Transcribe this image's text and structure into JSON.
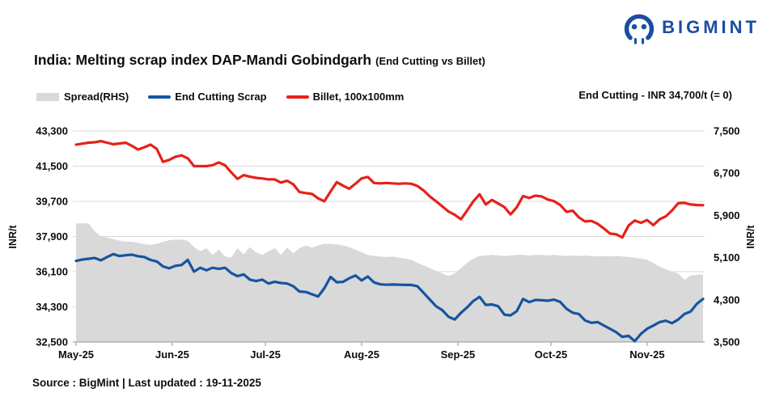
{
  "header": {
    "logo_text": "BIGMINT",
    "title_main": "India: Melting scrap index DAP-Mandi Gobindgarh",
    "title_sub": "(End Cutting vs Billet)"
  },
  "annotation": "End Cutting - INR 34,700/t (= 0)",
  "legend": {
    "items": [
      {
        "label": "Spread(RHS)"
      },
      {
        "label": "End Cutting Scrap"
      },
      {
        "label": "Billet, 100x100mm"
      }
    ]
  },
  "footer": {
    "source": "Source : BigMint | Last updated : 19-11-2025"
  },
  "colors": {
    "brand_blue": "#1b4da1",
    "scrap_blue": "#16549f",
    "billet_red": "#e62119",
    "spread_gray": "#d9d9d9",
    "gridline": "#d9d9d9",
    "axis_line": "#a6a6a6",
    "text": "#0d0d0d"
  },
  "chart_data": {
    "type": "combo (area + 2 lines)",
    "title": "India: Melting scrap index DAP-Mandi Gobindgarh (End Cutting vs Billet)",
    "x_description": "Daily prices May-2025 through 19-Nov-2025, sampled every 2 days (102 points, day index 0-202)",
    "x_day_step": 2,
    "x_domain_days": 202,
    "x_ticks": {
      "labels": [
        "May-25",
        "Jun-25",
        "Jul-25",
        "Aug-25",
        "Sep-25",
        "Oct-25",
        "Nov-25"
      ],
      "day_offsets": [
        0,
        31,
        61,
        92,
        123,
        153,
        184
      ]
    },
    "axes": {
      "left": {
        "label": "INR/t",
        "min": 32500,
        "max": 43300,
        "ticks": [
          43300,
          41500,
          39700,
          37900,
          36100,
          34300,
          32500
        ]
      },
      "right": {
        "label": "INR/t",
        "min": 3500,
        "max": 7500,
        "ticks": [
          7500,
          6700,
          5900,
          5100,
          4300,
          3500
        ]
      }
    },
    "grid": "horizontal only",
    "legend_position": "top-left",
    "series": [
      {
        "name": "Spread(RHS)",
        "type": "area",
        "axis": "right",
        "color": "#d9d9d9",
        "values": [
          5750,
          5750,
          5750,
          5600,
          5500,
          5480,
          5450,
          5420,
          5400,
          5400,
          5380,
          5350,
          5340,
          5360,
          5400,
          5430,
          5440,
          5440,
          5420,
          5300,
          5220,
          5280,
          5150,
          5250,
          5120,
          5100,
          5280,
          5160,
          5300,
          5200,
          5150,
          5220,
          5280,
          5150,
          5290,
          5180,
          5280,
          5330,
          5290,
          5330,
          5360,
          5360,
          5350,
          5330,
          5300,
          5250,
          5200,
          5150,
          5130,
          5120,
          5110,
          5120,
          5100,
          5080,
          5060,
          5000,
          4950,
          4900,
          4850,
          4800,
          4750,
          4800,
          4900,
          5000,
          5080,
          5130,
          5140,
          5150,
          5140,
          5130,
          5140,
          5150,
          5150,
          5140,
          5150,
          5150,
          5140,
          5150,
          5140,
          5130,
          5140,
          5130,
          5140,
          5130,
          5120,
          5130,
          5120,
          5130,
          5120,
          5110,
          5100,
          5080,
          5060,
          5000,
          4930,
          4880,
          4830,
          4800,
          4680,
          4760,
          4775,
          4775
        ]
      },
      {
        "name": "End Cutting Scrap",
        "type": "line",
        "axis": "left",
        "color": "#16549f",
        "latest_note": "End Cutting - INR 34,700/t (= 0)",
        "values": [
          36650,
          36720,
          36760,
          36800,
          36680,
          36850,
          37000,
          36900,
          36940,
          36970,
          36890,
          36850,
          36700,
          36620,
          36370,
          36270,
          36400,
          36440,
          36700,
          36100,
          36300,
          36170,
          36300,
          36240,
          36300,
          36030,
          35870,
          35960,
          35690,
          35620,
          35690,
          35490,
          35580,
          35520,
          35490,
          35350,
          35080,
          35060,
          34940,
          34830,
          35250,
          35830,
          35560,
          35580,
          35760,
          35900,
          35650,
          35850,
          35550,
          35450,
          35430,
          35440,
          35430,
          35420,
          35420,
          35350,
          35010,
          34670,
          34330,
          34130,
          33790,
          33650,
          33990,
          34270,
          34600,
          34810,
          34400,
          34420,
          34330,
          33900,
          33860,
          34080,
          34700,
          34540,
          34650,
          34640,
          34610,
          34670,
          34550,
          34200,
          34000,
          33930,
          33600,
          33480,
          33520,
          33350,
          33180,
          33000,
          32760,
          32820,
          32540,
          32920,
          33180,
          33340,
          33520,
          33590,
          33460,
          33650,
          33930,
          34060,
          34450,
          34700
        ]
      },
      {
        "name": "Billet, 100x100mm",
        "type": "line",
        "axis": "left",
        "color": "#e62119",
        "values": [
          42600,
          42650,
          42700,
          42720,
          42780,
          42700,
          42620,
          42660,
          42700,
          42540,
          42350,
          42470,
          42600,
          42380,
          41720,
          41820,
          41980,
          42050,
          41900,
          41500,
          41500,
          41500,
          41550,
          41690,
          41540,
          41180,
          40850,
          41040,
          40960,
          40900,
          40870,
          40820,
          40820,
          40660,
          40750,
          40570,
          40170,
          40120,
          40080,
          39850,
          39700,
          40200,
          40680,
          40500,
          40340,
          40600,
          40870,
          40950,
          40640,
          40620,
          40640,
          40620,
          40600,
          40620,
          40600,
          40480,
          40250,
          39950,
          39700,
          39440,
          39180,
          39010,
          38780,
          39230,
          39700,
          40060,
          39540,
          39770,
          39590,
          39400,
          39030,
          39400,
          39970,
          39870,
          39990,
          39950,
          39790,
          39710,
          39510,
          39160,
          39220,
          38880,
          38670,
          38700,
          38550,
          38320,
          38050,
          38010,
          37850,
          38460,
          38720,
          38600,
          38740,
          38480,
          38780,
          38930,
          39230,
          39600,
          39620,
          39540,
          39510,
          39500
        ]
      }
    ]
  }
}
